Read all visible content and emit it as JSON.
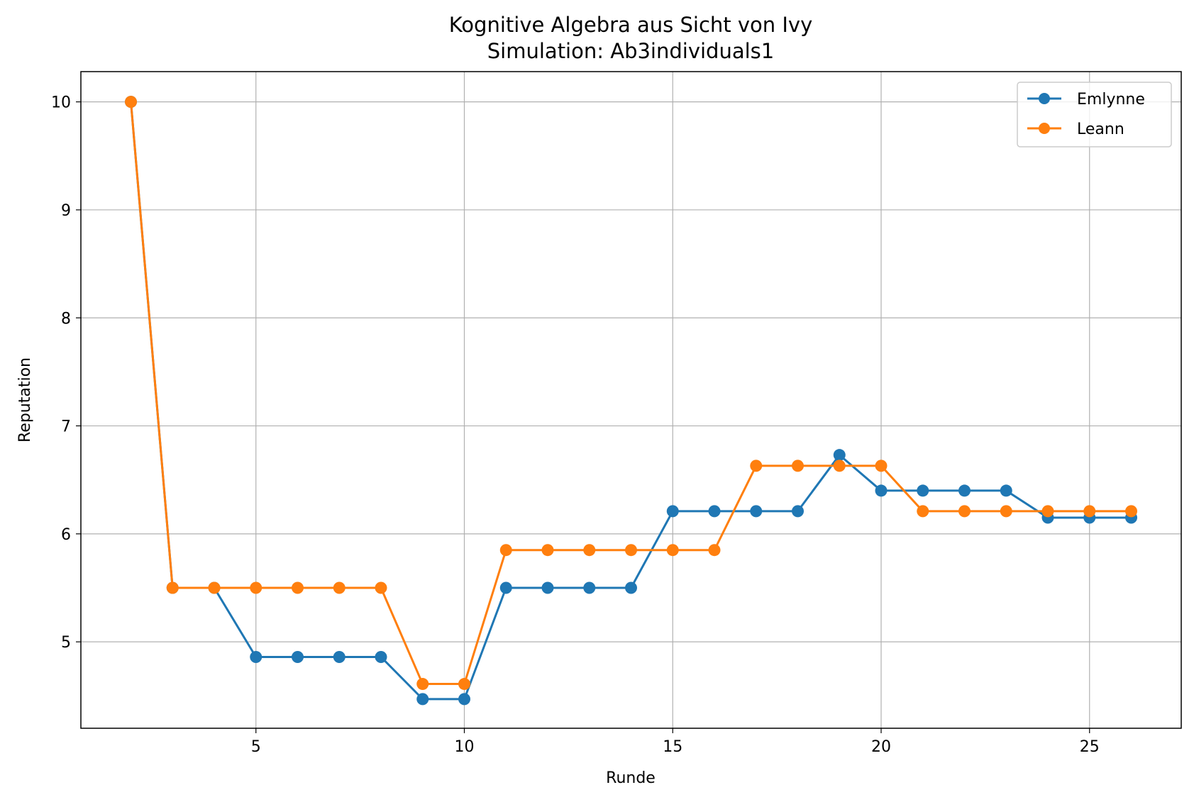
{
  "chart_data": {
    "type": "line",
    "title": "Kognitive Algebra aus Sicht von Ivy",
    "subtitle": "Simulation: Ab3individuals1",
    "xlabel": "Runde",
    "ylabel": "Reputation",
    "xlim": [
      0.8,
      27.2
    ],
    "ylim": [
      4.2,
      10.28
    ],
    "xticks": [
      5,
      10,
      15,
      20,
      25
    ],
    "yticks": [
      5,
      6,
      7,
      8,
      9,
      10
    ],
    "grid": true,
    "legend_position": "top-right",
    "x": [
      2,
      3,
      4,
      5,
      6,
      7,
      8,
      9,
      10,
      11,
      12,
      13,
      14,
      15,
      16,
      17,
      18,
      19,
      20,
      21,
      22,
      23,
      24,
      25,
      26
    ],
    "series": [
      {
        "name": "Emlynne",
        "color": "#1f77b4",
        "values": [
          10,
          5.5,
          5.5,
          4.86,
          4.86,
          4.86,
          4.86,
          4.47,
          4.47,
          5.5,
          5.5,
          5.5,
          5.5,
          6.21,
          6.21,
          6.21,
          6.21,
          6.73,
          6.4,
          6.4,
          6.4,
          6.4,
          6.15,
          6.15,
          6.15
        ]
      },
      {
        "name": "Leann",
        "color": "#ff7f0e",
        "values": [
          10,
          5.5,
          5.5,
          5.5,
          5.5,
          5.5,
          5.5,
          4.61,
          4.61,
          5.85,
          5.85,
          5.85,
          5.85,
          5.85,
          5.85,
          6.63,
          6.63,
          6.63,
          6.63,
          6.21,
          6.21,
          6.21,
          6.21,
          6.21,
          6.21
        ]
      }
    ]
  }
}
